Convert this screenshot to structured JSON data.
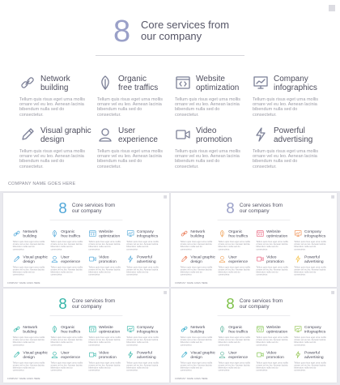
{
  "slide": {
    "number": "8",
    "title_line1": "Core services from",
    "title_line2": "our company",
    "footer": "COMPANY NAME GOES HERE"
  },
  "services": [
    {
      "icon": "link-icon",
      "line1": "Network",
      "line2": "building"
    },
    {
      "icon": "leaf-icon",
      "line1": "Organic",
      "line2": "free traffics"
    },
    {
      "icon": "code-icon",
      "line1": "Website",
      "line2": "optimization"
    },
    {
      "icon": "board-icon",
      "line1": "Company",
      "line2": "infographics"
    },
    {
      "icon": "pencil-icon",
      "line1": "Visual graphic",
      "line2": "design"
    },
    {
      "icon": "user-icon",
      "line1": "User",
      "line2": "experience"
    },
    {
      "icon": "camera-icon",
      "line1": "Video",
      "line2": "promotion"
    },
    {
      "icon": "lightning-icon",
      "line1": "Powerful",
      "line2": "advertising"
    }
  ],
  "description": {
    "line1": "Tellum quis risus eget urna mollis",
    "line2": "ornare vel eu leo. Aenean lacinia",
    "line3": "bibendum nulla sed do",
    "line4": "consectetur."
  },
  "themes": {
    "main": {
      "accent": "#9aa0c8",
      "icons": [
        "#7b7f96",
        "#7b7f96",
        "#7b7f96",
        "#7b7f96",
        "#7b7f96",
        "#7b7f96",
        "#7b7f96",
        "#7b7f96"
      ]
    },
    "blue": {
      "accent": "#4fa6d8",
      "icons": [
        "#4fa6d8",
        "#4fa6d8",
        "#4fa6d8",
        "#4fa6d8",
        "#4fa6d8",
        "#4fa6d8",
        "#4fa6d8",
        "#4fa6d8"
      ]
    },
    "multi": {
      "accent": "#9aa0c8",
      "icons": [
        "#e9734d",
        "#f0a35a",
        "#e85d7a",
        "#f08a4b",
        "#e9734d",
        "#f0a35a",
        "#e85d7a",
        "#f5c043"
      ]
    },
    "teal": {
      "accent": "#35b5a8",
      "icons": [
        "#35b5a8",
        "#35b5a8",
        "#35b5a8",
        "#35b5a8",
        "#35b5a8",
        "#35b5a8",
        "#35b5a8",
        "#35b5a8"
      ]
    },
    "green": {
      "accent": "#7fc24b",
      "icons": [
        "#2fa8c8",
        "#62b7a0",
        "#7fc24b",
        "#8fc24a",
        "#2fa8c8",
        "#62b7a0",
        "#7fc24b",
        "#8fc24a"
      ]
    }
  }
}
